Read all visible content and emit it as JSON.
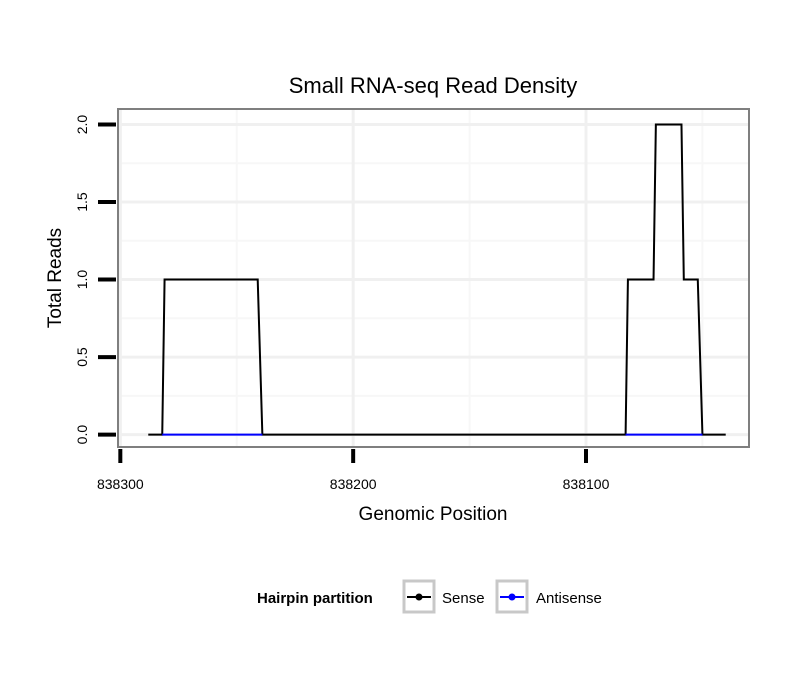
{
  "chart_data": {
    "type": "line",
    "title": "Small RNA-seq Read Density",
    "xlabel": "Genomic Position",
    "ylabel": "Total Reads",
    "x_reversed": true,
    "xlim": [
      838301,
      838030
    ],
    "ylim": [
      -0.08,
      2.1
    ],
    "x_ticks": [
      838300,
      838200,
      838100
    ],
    "x_tick_labels": [
      "838300",
      "838200",
      "838100"
    ],
    "y_ticks": [
      0.0,
      0.5,
      1.0,
      1.5,
      2.0
    ],
    "y_tick_labels": [
      "0.0",
      "0.5",
      "1.0",
      "1.5",
      "2.0"
    ],
    "grid": true,
    "legend_position": "bottom",
    "legend_title": "Hairpin partition",
    "series": [
      {
        "name": "Sense",
        "color": "#000000",
        "x": [
          838288,
          838282,
          838281,
          838241,
          838239,
          838083,
          838082,
          838071,
          838070,
          838059,
          838058,
          838052,
          838050,
          838040
        ],
        "y": [
          0,
          0,
          1,
          1,
          0,
          0,
          1,
          1,
          2,
          2,
          1,
          1,
          0,
          0
        ]
      },
      {
        "name": "Antisense",
        "color": "#0000ff",
        "x": [
          838282,
          838239,
          838083,
          838050
        ],
        "y": [
          0,
          0,
          0,
          0
        ],
        "segments": [
          [
            0,
            1
          ],
          [
            2,
            3
          ]
        ]
      }
    ]
  }
}
